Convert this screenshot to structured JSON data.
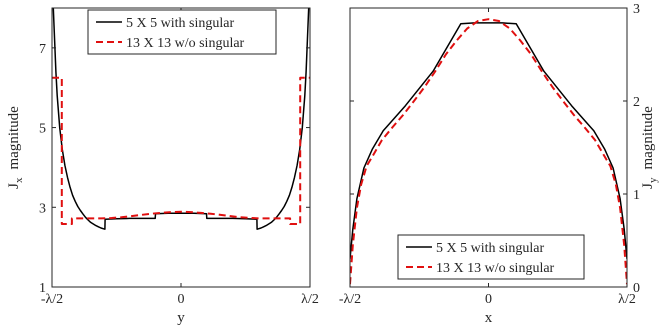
{
  "chart_data": [
    {
      "type": "line",
      "xlabel": "y",
      "ylabel_main": "J",
      "ylabel_sub": "x",
      "ylabel_rest": "magnitude",
      "xlim": [
        -0.5,
        0.5
      ],
      "ylim": [
        1,
        8
      ],
      "xticks": [
        {
          "value": -0.5,
          "label": "-λ/2"
        },
        {
          "value": 0,
          "label": "0"
        },
        {
          "value": 0.5,
          "label": "λ/2"
        }
      ],
      "yticks": [
        {
          "value": 1,
          "label": "1"
        },
        {
          "value": 3,
          "label": "3"
        },
        {
          "value": 5,
          "label": "5"
        },
        {
          "value": 7,
          "label": "7"
        }
      ],
      "legend_position": "top",
      "series": [
        {
          "name": "5 X 5 with singular",
          "color": "#000000",
          "dash": "solid",
          "x": [
            -0.495,
            -0.49,
            -0.485,
            -0.48,
            -0.47,
            -0.46,
            -0.45,
            -0.44,
            -0.43,
            -0.42,
            -0.41,
            -0.4,
            -0.39,
            -0.38,
            -0.37,
            -0.36,
            -0.35,
            -0.34,
            -0.33,
            -0.32,
            -0.31,
            -0.3,
            -0.295,
            -0.294,
            -0.25,
            -0.2,
            -0.15,
            -0.1,
            -0.099,
            -0.05,
            0,
            0.05,
            0.099,
            0.1,
            0.15,
            0.2,
            0.25,
            0.294,
            0.295,
            0.3,
            0.31,
            0.32,
            0.33,
            0.34,
            0.35,
            0.36,
            0.37,
            0.38,
            0.39,
            0.4,
            0.41,
            0.42,
            0.43,
            0.44,
            0.45,
            0.46,
            0.47,
            0.48,
            0.485,
            0.49,
            0.495
          ],
          "y": [
            8.0,
            7.2,
            6.4,
            5.8,
            5.0,
            4.45,
            4.05,
            3.75,
            3.5,
            3.3,
            3.15,
            3.02,
            2.92,
            2.83,
            2.75,
            2.68,
            2.62,
            2.58,
            2.54,
            2.51,
            2.48,
            2.46,
            2.45,
            2.7,
            2.71,
            2.72,
            2.72,
            2.72,
            2.84,
            2.85,
            2.85,
            2.85,
            2.84,
            2.72,
            2.72,
            2.72,
            2.71,
            2.7,
            2.45,
            2.46,
            2.48,
            2.51,
            2.54,
            2.58,
            2.62,
            2.68,
            2.75,
            2.83,
            2.92,
            3.02,
            3.15,
            3.3,
            3.5,
            3.75,
            4.05,
            4.45,
            5.0,
            5.8,
            6.4,
            7.2,
            8.0
          ]
        },
        {
          "name": "13 X 13 w/o singular",
          "color": "#e01010",
          "dash": "dashed",
          "x": [
            -0.5,
            -0.462,
            -0.462,
            -0.423,
            -0.423,
            -0.385,
            -0.346,
            -0.308,
            -0.269,
            -0.231,
            -0.192,
            -0.154,
            -0.115,
            -0.077,
            -0.038,
            0,
            0.038,
            0.077,
            0.115,
            0.154,
            0.192,
            0.231,
            0.269,
            0.308,
            0.346,
            0.385,
            0.423,
            0.423,
            0.462,
            0.462,
            0.5
          ],
          "y": [
            6.25,
            6.25,
            2.58,
            2.58,
            2.72,
            2.72,
            2.72,
            2.72,
            2.73,
            2.75,
            2.78,
            2.81,
            2.84,
            2.86,
            2.88,
            2.89,
            2.88,
            2.86,
            2.84,
            2.81,
            2.78,
            2.75,
            2.73,
            2.72,
            2.72,
            2.72,
            2.72,
            2.58,
            2.58,
            6.25,
            6.25
          ]
        }
      ]
    },
    {
      "type": "line",
      "xlabel": "x",
      "ylabel_main": "J",
      "ylabel_sub": "y",
      "ylabel_rest": "magnitude",
      "xlim": [
        -0.5,
        0.5
      ],
      "ylim": [
        0,
        3
      ],
      "xticks": [
        {
          "value": -0.5,
          "label": "-λ/2"
        },
        {
          "value": 0,
          "label": "0"
        },
        {
          "value": 0.5,
          "label": "λ/2"
        }
      ],
      "yticks": [
        {
          "value": 0,
          "label": "0"
        },
        {
          "value": 1,
          "label": "1"
        },
        {
          "value": 2,
          "label": "2"
        },
        {
          "value": 3,
          "label": "3"
        }
      ],
      "legend_position": "bottom",
      "series": [
        {
          "name": "5 X 5 with singular",
          "color": "#000000",
          "dash": "solid",
          "x": [
            -0.5,
            -0.49,
            -0.475,
            -0.45,
            -0.42,
            -0.38,
            -0.3,
            -0.2,
            -0.1,
            -0.05,
            0,
            0.05,
            0.1,
            0.2,
            0.3,
            0.38,
            0.42,
            0.45,
            0.475,
            0.49,
            0.5
          ],
          "y": [
            0.3,
            0.62,
            0.95,
            1.28,
            1.48,
            1.68,
            1.95,
            2.32,
            2.83,
            2.84,
            2.84,
            2.84,
            2.83,
            2.32,
            1.95,
            1.68,
            1.48,
            1.28,
            0.95,
            0.62,
            0.3
          ]
        },
        {
          "name": "13 X 13 w/o singular",
          "color": "#e01010",
          "dash": "dashed",
          "x": [
            -0.5,
            -0.49,
            -0.475,
            -0.46,
            -0.44,
            -0.42,
            -0.385,
            -0.346,
            -0.308,
            -0.269,
            -0.231,
            -0.192,
            -0.154,
            -0.115,
            -0.077,
            -0.038,
            0,
            0.038,
            0.077,
            0.115,
            0.154,
            0.192,
            0.231,
            0.269,
            0.308,
            0.346,
            0.385,
            0.42,
            0.44,
            0.46,
            0.475,
            0.49,
            0.5
          ],
          "y": [
            0.03,
            0.45,
            0.85,
            1.1,
            1.3,
            1.4,
            1.58,
            1.72,
            1.85,
            2.0,
            2.15,
            2.32,
            2.5,
            2.65,
            2.78,
            2.86,
            2.88,
            2.86,
            2.78,
            2.65,
            2.5,
            2.32,
            2.15,
            2.0,
            1.85,
            1.72,
            1.58,
            1.4,
            1.3,
            1.1,
            0.85,
            0.45,
            0.03
          ]
        }
      ]
    }
  ]
}
